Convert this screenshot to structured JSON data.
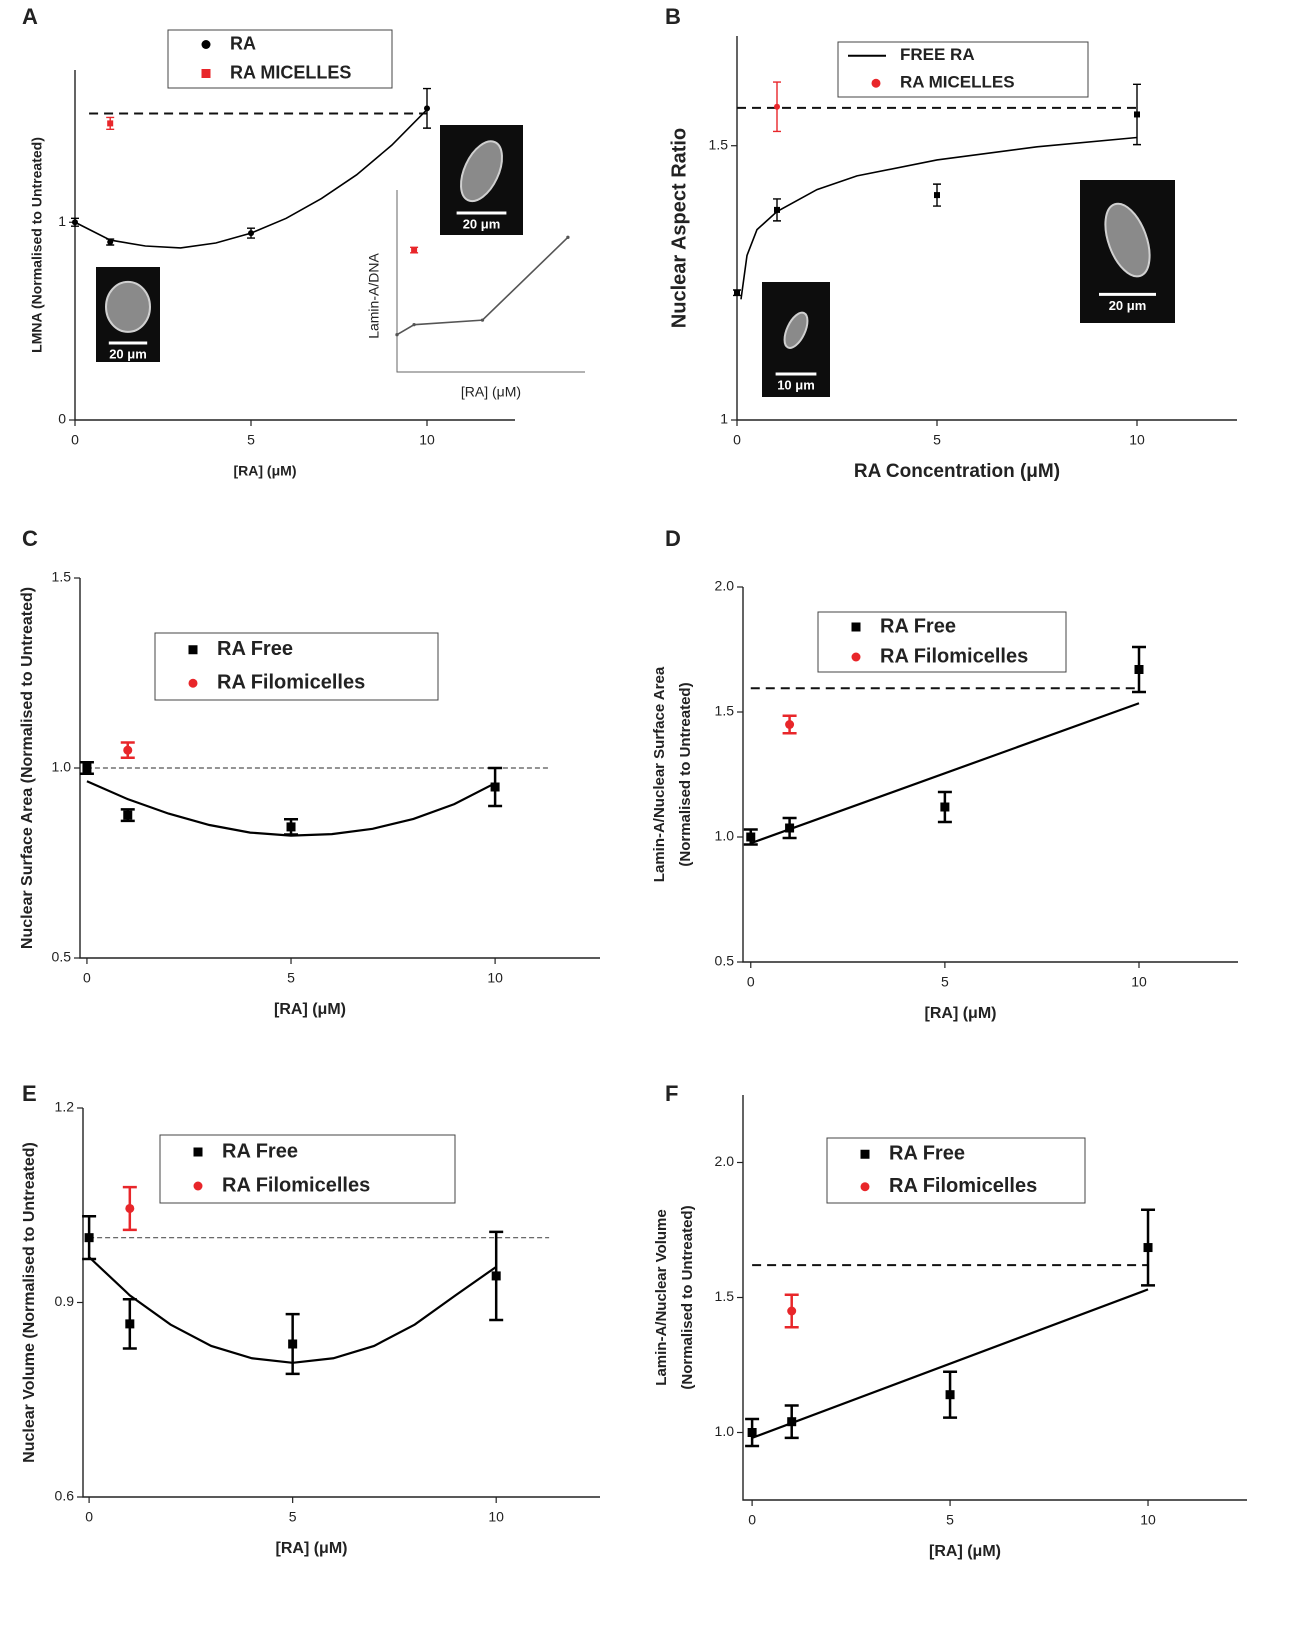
{
  "chart_data": [
    {
      "panel": "A",
      "type": "scatter",
      "xlabel": "[RA] (μM)",
      "ylabel": "LMNA (Normalised to Untreated)",
      "xlim": [
        0,
        12.5
      ],
      "ylim": [
        0,
        1.77
      ],
      "xticks": [
        0,
        5,
        10
      ],
      "yticks": [
        0,
        1
      ],
      "series": [
        {
          "name": "RA",
          "color": "#000000",
          "marker": "circle",
          "x": [
            0,
            1,
            5,
            10
          ],
          "values": [
            1.0,
            0.9,
            0.945,
            1.576
          ],
          "errors": [
            0.02,
            0.015,
            0.025,
            0.1
          ]
        },
        {
          "name": "RA MICELLES",
          "color": "#e8262a",
          "marker": "square",
          "x": [
            1
          ],
          "values": [
            1.5
          ],
          "errors": [
            0.03
          ]
        },
        {
          "color": "#000000",
          "marker": "line",
          "x": [
            0,
            1,
            2,
            3,
            4,
            5,
            6,
            7,
            8,
            9,
            10
          ],
          "values": [
            1.0,
            0.91,
            0.88,
            0.87,
            0.895,
            0.945,
            1.02,
            1.12,
            1.24,
            1.39,
            1.57
          ]
        }
      ],
      "reference_line": {
        "value": 1.55,
        "x": [
          0.4,
          10
        ]
      },
      "images": [
        {
          "label": "20 μm"
        },
        {
          "label": "20 μm"
        }
      ],
      "inset": {
        "type": "line",
        "xlabel": "[RA] (μM)",
        "ylabel": "Lamin-A/DNA",
        "xlim": [
          0,
          11
        ],
        "ylim": [
          0,
          2
        ],
        "series": [
          {
            "color": "#555555",
            "marker": "line-dot",
            "x": [
              0,
              1,
              5,
              10
            ],
            "values": [
              0.41,
              0.52,
              0.57,
              1.48
            ]
          },
          {
            "color": "#e8262a",
            "marker": "square",
            "x": [
              1
            ],
            "values": [
              1.34
            ],
            "errors": [
              0.03
            ]
          }
        ]
      }
    },
    {
      "panel": "B",
      "type": "scatter",
      "xlabel": "RA Concentration (μM)",
      "ylabel": "Nuclear Aspect Ratio",
      "xlim": [
        0,
        12.5
      ],
      "ylim": [
        1,
        1.7
      ],
      "xticks": [
        0,
        5,
        10
      ],
      "yticks": [
        1,
        1.5
      ],
      "series": [
        {
          "color": "#000000",
          "marker": "square",
          "x": [
            0,
            1,
            5,
            10
          ],
          "values": [
            1.232,
            1.383,
            1.41,
            1.557
          ],
          "errors": [
            0.005,
            0.02,
            0.02,
            0.055
          ]
        },
        {
          "name": "FREE RA",
          "color": "#000000",
          "marker": "line",
          "x": [
            0.1,
            0.25,
            0.5,
            1,
            2,
            3,
            5,
            7.5,
            10
          ],
          "values": [
            1.22,
            1.3,
            1.347,
            1.38,
            1.42,
            1.445,
            1.474,
            1.498,
            1.515
          ]
        },
        {
          "name": "RA MICELLES",
          "color": "#e8262a",
          "marker": "circle",
          "x": [
            1
          ],
          "values": [
            1.571
          ],
          "errors": [
            0.045
          ]
        }
      ],
      "reference_line": {
        "value": 1.569,
        "x": [
          0,
          10
        ]
      },
      "images": [
        {
          "label": "10 μm"
        },
        {
          "label": "20 μm"
        }
      ]
    },
    {
      "panel": "C",
      "type": "scatter",
      "xlabel": "[RA] (μM)",
      "ylabel": "Nuclear Surface Area (Normalised to Untreated)",
      "xlim": [
        -0.17,
        12.57
      ],
      "ylim": [
        0.5,
        1.5
      ],
      "xticks": [
        0,
        5,
        10
      ],
      "yticks": [
        0.5,
        {
          "value": 1,
          "label": "1.0"
        },
        1.5
      ],
      "series": [
        {
          "name": "RA Free",
          "color": "#000000",
          "marker": "square",
          "x": [
            0,
            1,
            5,
            10
          ],
          "values": [
            1.0,
            0.876,
            0.845,
            0.95
          ],
          "errors": [
            0.015,
            0.015,
            0.02,
            0.05
          ]
        },
        {
          "name": "RA Filomicelles",
          "color": "#e8262a",
          "marker": "circle",
          "x": [
            1
          ],
          "values": [
            1.047
          ],
          "errors": [
            0.02
          ]
        },
        {
          "color": "#000000",
          "marker": "line",
          "x": [
            0,
            1,
            2,
            3,
            4,
            5,
            6,
            7,
            8,
            9,
            10
          ],
          "values": [
            0.965,
            0.918,
            0.88,
            0.85,
            0.83,
            0.822,
            0.826,
            0.84,
            0.866,
            0.905,
            0.96
          ]
        }
      ],
      "reference_line": {
        "value": 1.0,
        "x": [
          0,
          11.3
        ],
        "thin": true
      }
    },
    {
      "panel": "D",
      "type": "scatter",
      "xlabel": "[RA] (μM)",
      "ylabel": [
        "Lamin-A/Nuclear Surface Area",
        "(Normalised to Untreated)"
      ],
      "xlim": [
        -0.2,
        12.55
      ],
      "ylim": [
        0.5,
        2.0
      ],
      "xticks": [
        0,
        5,
        10
      ],
      "yticks": [
        0.5,
        {
          "value": 1,
          "label": "1.0"
        },
        1.5,
        {
          "value": 2,
          "label": "2.0"
        }
      ],
      "series": [
        {
          "name": "RA Free",
          "color": "#000000",
          "marker": "square",
          "x": [
            0,
            1,
            5,
            10
          ],
          "values": [
            1.0,
            1.036,
            1.12,
            1.67
          ],
          "errors": [
            0.03,
            0.04,
            0.06,
            0.09
          ]
        },
        {
          "name": "RA Filomicelles",
          "color": "#e8262a",
          "marker": "circle",
          "x": [
            1
          ],
          "values": [
            1.45
          ],
          "errors": [
            0.035
          ]
        },
        {
          "color": "#000000",
          "marker": "line",
          "x": [
            0,
            10
          ],
          "values": [
            0.975,
            1.535
          ]
        }
      ],
      "reference_line": {
        "value": 1.595,
        "x": [
          0,
          10
        ]
      }
    },
    {
      "panel": "E",
      "type": "scatter",
      "xlabel": "[RA] (μM)",
      "ylabel": "Nuclear Volume (Normalised to Untreated)",
      "xlim": [
        -0.15,
        12.55
      ],
      "ylim": [
        0.6,
        1.2
      ],
      "xticks": [
        0,
        5,
        10
      ],
      "yticks": [
        0.6,
        0.9,
        1.2
      ],
      "series": [
        {
          "name": "RA Free",
          "color": "#000000",
          "marker": "square",
          "x": [
            0,
            1,
            5,
            10
          ],
          "values": [
            1.0,
            0.867,
            0.836,
            0.941
          ],
          "errors": [
            0.033,
            0.038,
            0.046,
            0.068
          ]
        },
        {
          "name": "RA Filomicelles",
          "color": "#e8262a",
          "marker": "circle",
          "x": [
            1
          ],
          "values": [
            1.045
          ],
          "errors": [
            0.033
          ]
        },
        {
          "color": "#000000",
          "marker": "line",
          "x": [
            0,
            1,
            2,
            3,
            4,
            5,
            6,
            7,
            8,
            9,
            10
          ],
          "values": [
            0.97,
            0.911,
            0.866,
            0.833,
            0.814,
            0.807,
            0.814,
            0.833,
            0.866,
            0.911,
            0.955
          ]
        }
      ],
      "reference_line": {
        "value": 1.0,
        "x": [
          0,
          11.3
        ],
        "thin": true
      }
    },
    {
      "panel": "F",
      "type": "scatter",
      "xlabel": "[RA] (μM)",
      "ylabel": [
        "Lamin-A/Nuclear Volume",
        "(Normalised to Untreated)"
      ],
      "xlim": [
        -0.23,
        12.5
      ],
      "ylim": [
        0.75,
        2.25
      ],
      "xticks": [
        0,
        5,
        10
      ],
      "yticks": [
        {
          "value": 1,
          "label": "1.0"
        },
        1.5,
        {
          "value": 2,
          "label": "2.0"
        }
      ],
      "series": [
        {
          "name": "RA Free",
          "color": "#000000",
          "marker": "square",
          "x": [
            0,
            1,
            5,
            10
          ],
          "values": [
            1.0,
            1.04,
            1.14,
            1.685
          ],
          "errors": [
            0.05,
            0.06,
            0.085,
            0.14
          ]
        },
        {
          "name": "RA Filomicelles",
          "color": "#e8262a",
          "marker": "circle",
          "x": [
            1
          ],
          "values": [
            1.45
          ],
          "errors": [
            0.06
          ]
        },
        {
          "color": "#000000",
          "marker": "line",
          "x": [
            0,
            10
          ],
          "values": [
            0.98,
            1.53
          ]
        }
      ],
      "reference_line": {
        "value": 1.62,
        "x": [
          0,
          10
        ]
      }
    }
  ]
}
